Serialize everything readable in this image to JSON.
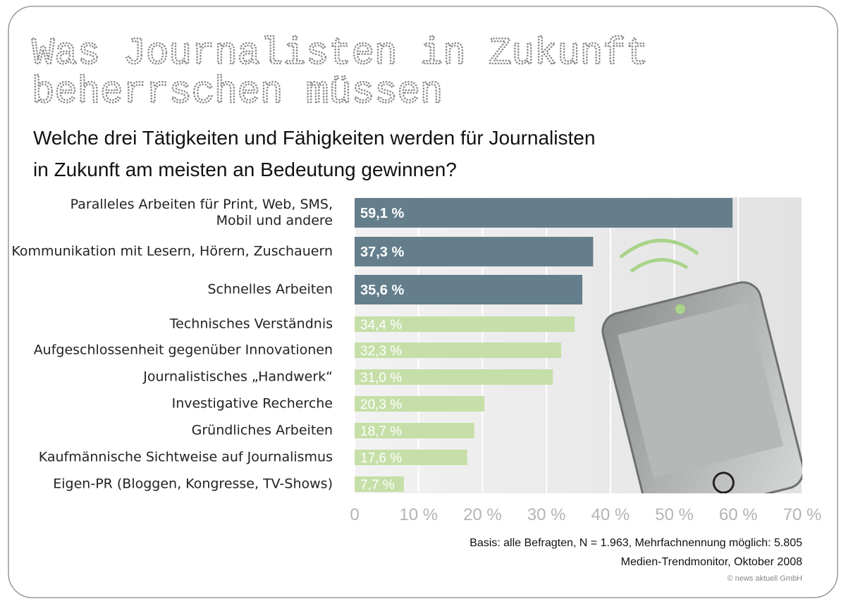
{
  "chart_data": {
    "type": "bar",
    "orientation": "horizontal",
    "title": [
      "Was Journalisten in Zukunft",
      "beherrschen müssen"
    ],
    "subtitle": [
      "Welche drei Tätigkeiten und Fähigkeiten werden für Journalisten",
      "in Zukunft am meisten an Bedeutung gewinnen?"
    ],
    "categories": [
      "Paralleles Arbeiten für Print, Web, SMS, Mobil und andere",
      "Kommunikation mit Lesern, Hörern, Zuschauern",
      "Schnelles Arbeiten",
      "Technisches Verständnis",
      "Aufgeschlossenheit gegenüber Innovationen",
      "Journalistisches „Handwerk“",
      "Investigative Recherche",
      "Gründliches Arbeiten",
      "Kaufmännische Sichtweise auf Journalismus",
      "Eigen-PR (Bloggen, Kongresse, TV-Shows)"
    ],
    "values": [
      59.1,
      37.3,
      35.6,
      34.4,
      32.3,
      31.0,
      20.3,
      18.7,
      17.6,
      7.7
    ],
    "value_labels": [
      "59,1 %",
      "37,3 %",
      "35,6 %",
      "34,4 %",
      "32,3 %",
      "31,0 %",
      "20,3 %",
      "18,7 %",
      "17,6 %",
      "7,7 %"
    ],
    "colors": [
      "#647e8c",
      "#647e8c",
      "#647e8c",
      "#c6dfa8",
      "#c6dfa8",
      "#c6dfa8",
      "#c6dfa8",
      "#c6dfa8",
      "#c6dfa8",
      "#c6dfa8"
    ],
    "xlim": [
      0,
      70
    ],
    "xticks": [
      0,
      {
        "value": 10,
        "label": "10 %"
      },
      {
        "value": 20,
        "label": "20 %"
      },
      {
        "value": 30,
        "label": "30 %"
      },
      {
        "value": 40,
        "label": "40 %"
      },
      {
        "value": 50,
        "label": "50 %"
      },
      {
        "value": 60,
        "label": "60 %"
      },
      {
        "value": 70,
        "label": "70 %"
      }
    ],
    "grid": true,
    "notes": [
      "Basis: alle Befragten, N = 1.963, Mehrfachnennung möglich: 5.805",
      "Medien-Trendmonitor, Oktober 2008"
    ],
    "copyright": "© news aktuell GmbH"
  }
}
